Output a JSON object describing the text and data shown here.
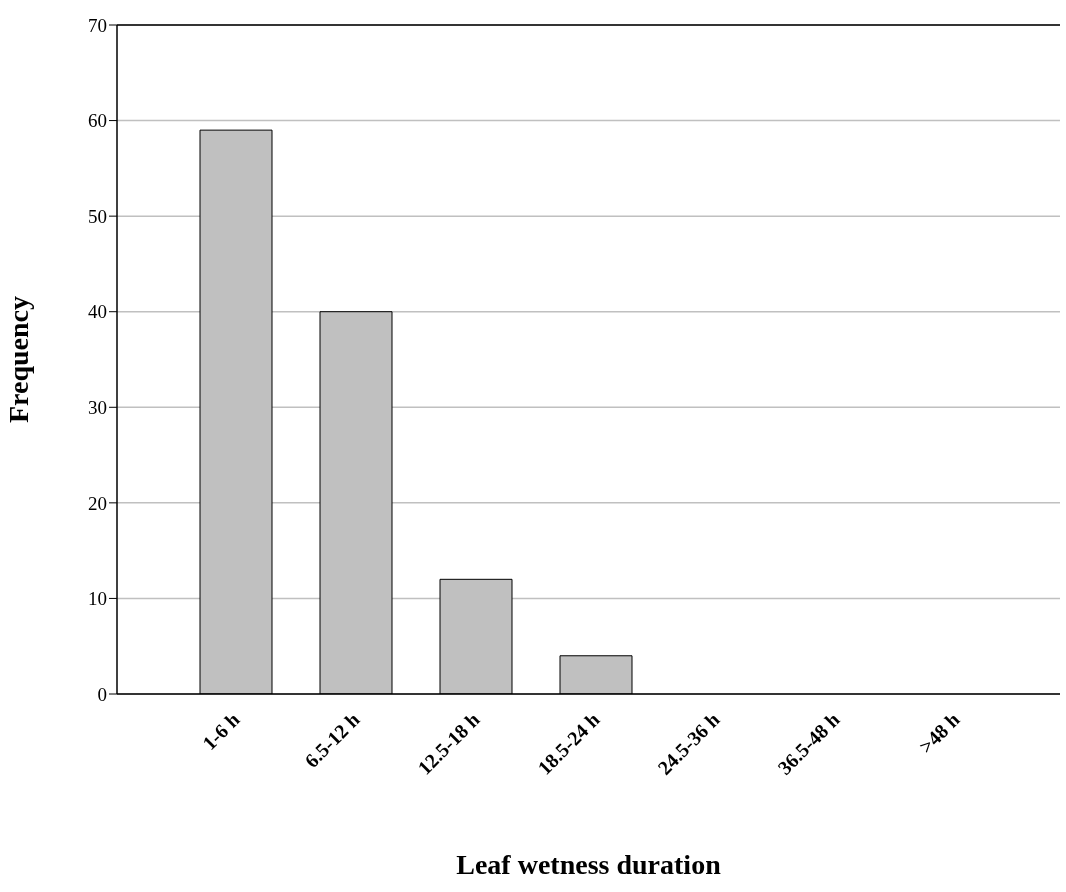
{
  "chart_data": {
    "type": "bar",
    "xlabel": "Leaf wetness duration",
    "ylabel": "Frequency",
    "categories": [
      "1-6 h",
      "6.5-12 h",
      "12.5-18 h",
      "18.5-24 h",
      "24.5-36 h",
      "36.5-48 h",
      ">48 h"
    ],
    "values": [
      59,
      40,
      12,
      4,
      0,
      0,
      0
    ],
    "color": "#c0c0c0",
    "ylim": [
      0,
      70
    ],
    "yticks": [
      0,
      10,
      20,
      30,
      40,
      50,
      60,
      70
    ],
    "grid": "y"
  }
}
